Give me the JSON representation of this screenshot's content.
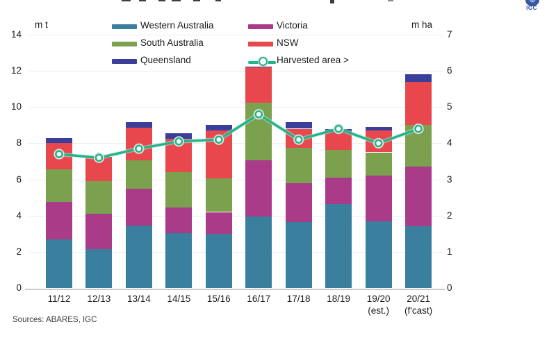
{
  "logo": {
    "text": "IGC",
    "color": "#2b4fa0"
  },
  "axes": {
    "left_unit": "m t",
    "right_unit": "m ha",
    "left_ticks": [
      0,
      2,
      4,
      6,
      8,
      10,
      12,
      14
    ],
    "right_ticks": [
      0,
      1,
      2,
      3,
      4,
      5,
      6,
      7
    ]
  },
  "legend": {
    "column1": [
      "Western Australia",
      "South Australia",
      "Queensland"
    ],
    "column2": [
      "Victoria",
      "NSW"
    ],
    "line_label": "Harvested area >"
  },
  "chart_data": {
    "type": "bar",
    "stacked": true,
    "title": "",
    "categories": [
      "11/12",
      "12/13",
      "13/14",
      "14/15",
      "15/16",
      "16/17",
      "17/18",
      "18/19",
      "19/20",
      "20/21"
    ],
    "category_sublabels": [
      "",
      "",
      "",
      "",
      "",
      "",
      "",
      "",
      "(est.)",
      "(f'cast)"
    ],
    "series": [
      {
        "name": "Western Australia",
        "color": "#3a7f9d",
        "values": [
          2.7,
          2.15,
          3.45,
          3.05,
          3.0,
          3.95,
          3.65,
          4.65,
          3.7,
          3.4
        ]
      },
      {
        "name": "Victoria",
        "color": "#a93b89",
        "values": [
          2.05,
          1.95,
          2.05,
          1.4,
          1.2,
          3.1,
          2.15,
          1.45,
          2.5,
          3.3
        ]
      },
      {
        "name": "South Australia",
        "color": "#7ba04e",
        "values": [
          1.8,
          1.8,
          1.55,
          1.95,
          1.85,
          3.2,
          1.95,
          1.55,
          1.3,
          2.3
        ]
      },
      {
        "name": "NSW",
        "color": "#e8484d",
        "values": [
          1.45,
          1.3,
          1.8,
          1.85,
          2.65,
          1.95,
          1.05,
          0.95,
          1.2,
          2.4
        ]
      },
      {
        "name": "Queensland",
        "color": "#3a3f9b",
        "values": [
          0.3,
          0.05,
          0.3,
          0.3,
          0.3,
          0.05,
          0.35,
          0.2,
          0.2,
          0.4
        ]
      }
    ],
    "line_series": {
      "name": "Harvested area >",
      "color": "#22b487",
      "axis": "right",
      "values": [
        3.7,
        3.6,
        3.85,
        4.05,
        4.1,
        4.8,
        4.1,
        4.4,
        4.0,
        4.4
      ]
    },
    "ylim_left": [
      0,
      14
    ],
    "ylim_right": [
      0,
      7
    ],
    "ylabel_left": "m t",
    "ylabel_right": "m ha",
    "grid": true,
    "legend_position": "top"
  },
  "source": "Sources: ABARES, IGC"
}
